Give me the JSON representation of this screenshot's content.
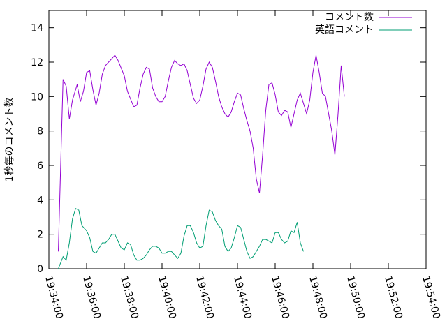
{
  "chart_data": {
    "type": "line",
    "title": "",
    "xlabel": "",
    "ylabel": "1秒毎のコメント数",
    "xlim": [
      "19:34:00",
      "19:54:00"
    ],
    "ylim": [
      0,
      15
    ],
    "x_ticks": [
      "19:34:00",
      "19:36:00",
      "19:38:00",
      "19:40:00",
      "19:42:00",
      "19:44:00",
      "19:46:00",
      "19:48:00",
      "19:50:00",
      "19:52:00",
      "19:54:00"
    ],
    "y_ticks": [
      "0",
      "2",
      "4",
      "6",
      "8",
      "10",
      "12",
      "14"
    ],
    "grid": false,
    "legend_position": "top-right",
    "series": [
      {
        "name": "コメント数",
        "color": "#9400d3",
        "points": [
          [
            "19:34:30",
            1.0
          ],
          [
            "19:34:45",
            11.0
          ],
          [
            "19:34:55",
            10.6
          ],
          [
            "19:35:05",
            8.7
          ],
          [
            "19:35:15",
            9.8
          ],
          [
            "19:35:30",
            10.7
          ],
          [
            "19:35:40",
            9.7
          ],
          [
            "19:35:50",
            10.3
          ],
          [
            "19:36:00",
            11.4
          ],
          [
            "19:36:10",
            11.5
          ],
          [
            "19:36:20",
            10.4
          ],
          [
            "19:36:30",
            9.5
          ],
          [
            "19:36:40",
            10.2
          ],
          [
            "19:36:50",
            11.3
          ],
          [
            "19:37:00",
            11.8
          ],
          [
            "19:37:20",
            12.2
          ],
          [
            "19:37:30",
            12.4
          ],
          [
            "19:37:40",
            12.1
          ],
          [
            "19:38:00",
            11.2
          ],
          [
            "19:38:10",
            10.3
          ],
          [
            "19:38:30",
            9.4
          ],
          [
            "19:38:40",
            9.5
          ],
          [
            "19:38:50",
            10.5
          ],
          [
            "19:39:00",
            11.3
          ],
          [
            "19:39:10",
            11.7
          ],
          [
            "19:39:20",
            11.6
          ],
          [
            "19:39:30",
            10.5
          ],
          [
            "19:39:40",
            10.0
          ],
          [
            "19:39:50",
            9.7
          ],
          [
            "19:40:00",
            9.7
          ],
          [
            "19:40:10",
            10.0
          ],
          [
            "19:40:20",
            10.9
          ],
          [
            "19:40:30",
            11.7
          ],
          [
            "19:40:40",
            12.1
          ],
          [
            "19:40:50",
            11.9
          ],
          [
            "19:41:00",
            11.8
          ],
          [
            "19:41:10",
            11.9
          ],
          [
            "19:41:20",
            11.5
          ],
          [
            "19:41:30",
            10.7
          ],
          [
            "19:41:40",
            9.9
          ],
          [
            "19:41:50",
            9.6
          ],
          [
            "19:42:00",
            9.8
          ],
          [
            "19:42:10",
            10.6
          ],
          [
            "19:42:20",
            11.6
          ],
          [
            "19:42:30",
            12.0
          ],
          [
            "19:42:40",
            11.7
          ],
          [
            "19:42:50",
            10.9
          ],
          [
            "19:43:00",
            10.0
          ],
          [
            "19:43:10",
            9.4
          ],
          [
            "19:43:20",
            9.0
          ],
          [
            "19:43:30",
            8.8
          ],
          [
            "19:43:40",
            9.1
          ],
          [
            "19:43:50",
            9.7
          ],
          [
            "19:44:00",
            10.2
          ],
          [
            "19:44:10",
            10.1
          ],
          [
            "19:44:20",
            9.3
          ],
          [
            "19:44:30",
            8.6
          ],
          [
            "19:44:40",
            8.0
          ],
          [
            "19:44:50",
            7.0
          ],
          [
            "19:45:00",
            5.2
          ],
          [
            "19:45:10",
            4.4
          ],
          [
            "19:45:20",
            6.6
          ],
          [
            "19:45:30",
            9.2
          ],
          [
            "19:45:40",
            10.7
          ],
          [
            "19:45:50",
            10.8
          ],
          [
            "19:46:00",
            10.1
          ],
          [
            "19:46:10",
            9.1
          ],
          [
            "19:46:20",
            8.9
          ],
          [
            "19:46:30",
            9.2
          ],
          [
            "19:46:40",
            9.1
          ],
          [
            "19:46:50",
            8.2
          ],
          [
            "19:47:00",
            9.0
          ],
          [
            "19:47:10",
            9.8
          ],
          [
            "19:47:20",
            10.2
          ],
          [
            "19:47:30",
            9.6
          ],
          [
            "19:47:40",
            9.0
          ],
          [
            "19:47:50",
            9.8
          ],
          [
            "19:48:00",
            11.4
          ],
          [
            "19:48:10",
            12.4
          ],
          [
            "19:48:20",
            11.4
          ],
          [
            "19:48:30",
            10.2
          ],
          [
            "19:48:40",
            10.0
          ],
          [
            "19:48:50",
            9.0
          ],
          [
            "19:49:00",
            8.0
          ],
          [
            "19:49:10",
            6.6
          ],
          [
            "19:49:20",
            9.0
          ],
          [
            "19:49:30",
            11.8
          ],
          [
            "19:49:40",
            10.0
          ]
        ]
      },
      {
        "name": "英語コメント",
        "color": "#009e73",
        "points": [
          [
            "19:34:30",
            0.0
          ],
          [
            "19:34:45",
            0.7
          ],
          [
            "19:34:55",
            0.5
          ],
          [
            "19:35:05",
            1.5
          ],
          [
            "19:35:15",
            2.9
          ],
          [
            "19:35:25",
            3.5
          ],
          [
            "19:35:35",
            3.4
          ],
          [
            "19:35:45",
            2.5
          ],
          [
            "19:36:00",
            2.2
          ],
          [
            "19:36:10",
            1.8
          ],
          [
            "19:36:20",
            1.0
          ],
          [
            "19:36:30",
            0.9
          ],
          [
            "19:36:40",
            1.2
          ],
          [
            "19:36:50",
            1.5
          ],
          [
            "19:37:00",
            1.5
          ],
          [
            "19:37:10",
            1.7
          ],
          [
            "19:37:20",
            2.0
          ],
          [
            "19:37:30",
            2.0
          ],
          [
            "19:37:40",
            1.6
          ],
          [
            "19:37:50",
            1.2
          ],
          [
            "19:38:00",
            1.1
          ],
          [
            "19:38:10",
            1.5
          ],
          [
            "19:38:20",
            1.4
          ],
          [
            "19:38:30",
            0.8
          ],
          [
            "19:38:40",
            0.5
          ],
          [
            "19:38:50",
            0.5
          ],
          [
            "19:39:00",
            0.6
          ],
          [
            "19:39:10",
            0.8
          ],
          [
            "19:39:20",
            1.1
          ],
          [
            "19:39:30",
            1.3
          ],
          [
            "19:39:40",
            1.3
          ],
          [
            "19:39:50",
            1.2
          ],
          [
            "19:40:00",
            0.9
          ],
          [
            "19:40:10",
            0.9
          ],
          [
            "19:40:20",
            1.0
          ],
          [
            "19:40:30",
            1.0
          ],
          [
            "19:40:40",
            0.8
          ],
          [
            "19:40:50",
            0.6
          ],
          [
            "19:41:00",
            0.9
          ],
          [
            "19:41:10",
            1.9
          ],
          [
            "19:41:20",
            2.5
          ],
          [
            "19:41:30",
            2.5
          ],
          [
            "19:41:40",
            2.1
          ],
          [
            "19:41:50",
            1.5
          ],
          [
            "19:42:00",
            1.2
          ],
          [
            "19:42:10",
            1.3
          ],
          [
            "19:42:20",
            2.5
          ],
          [
            "19:42:30",
            3.4
          ],
          [
            "19:42:40",
            3.3
          ],
          [
            "19:42:50",
            2.8
          ],
          [
            "19:43:00",
            2.5
          ],
          [
            "19:43:10",
            2.3
          ],
          [
            "19:43:20",
            1.3
          ],
          [
            "19:43:30",
            1.0
          ],
          [
            "19:43:40",
            1.2
          ],
          [
            "19:43:50",
            1.8
          ],
          [
            "19:44:00",
            2.5
          ],
          [
            "19:44:10",
            2.4
          ],
          [
            "19:44:20",
            1.7
          ],
          [
            "19:44:30",
            1.0
          ],
          [
            "19:44:40",
            0.6
          ],
          [
            "19:44:50",
            0.7
          ],
          [
            "19:45:00",
            1.0
          ],
          [
            "19:45:10",
            1.3
          ],
          [
            "19:45:20",
            1.7
          ],
          [
            "19:45:30",
            1.7
          ],
          [
            "19:45:40",
            1.6
          ],
          [
            "19:45:50",
            1.5
          ],
          [
            "19:46:00",
            2.1
          ],
          [
            "19:46:10",
            2.1
          ],
          [
            "19:46:20",
            1.7
          ],
          [
            "19:46:30",
            1.5
          ],
          [
            "19:46:40",
            1.6
          ],
          [
            "19:46:50",
            2.2
          ],
          [
            "19:47:00",
            2.1
          ],
          [
            "19:47:10",
            2.7
          ],
          [
            "19:47:20",
            1.5
          ],
          [
            "19:47:30",
            1.0
          ]
        ]
      }
    ]
  }
}
